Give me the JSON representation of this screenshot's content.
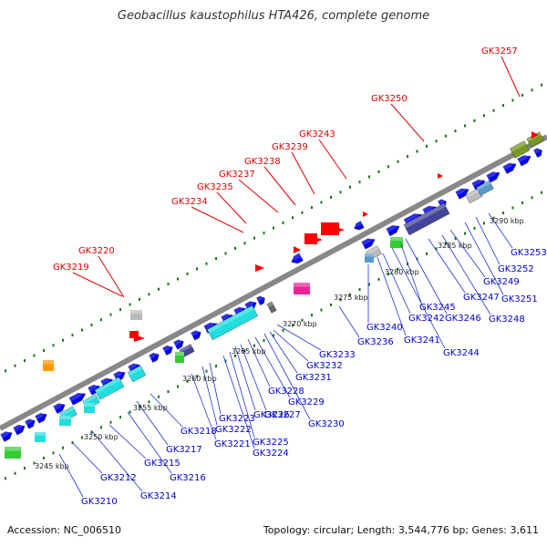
{
  "title": "Geobacillus kaustophilus HTA426, complete genome",
  "footer": {
    "accession": "Accession: NC_006510",
    "stats": "Topology: circular; Length: 3,544,776 bp; Genes: 3,611"
  },
  "colors": {
    "backbone": "#888888",
    "forward_gene": "#0000ee",
    "red_feature": "#ff0000",
    "red_label": "#e00000",
    "blue_label": "#0000cc",
    "cyan": "#22dddd",
    "green": "#33cc33",
    "slate": "#444499",
    "olive": "#779922",
    "steel": "#5599cc",
    "magenta": "#ee2299",
    "orange": "#ff9900",
    "gray": "#bbbbbb",
    "tick": "#117711"
  },
  "scale_labels": [
    "3245 kbp",
    "3250 kbp",
    "3255 kbp",
    "3260 kbp",
    "3265 kbp",
    "3270 kbp",
    "3275 kbp",
    "3280 kbp",
    "3285 kbp",
    "3290 kbp"
  ],
  "top_genes": [
    "GK3219",
    "GK3220",
    "GK3234",
    "GK3235",
    "GK3237",
    "GK3238",
    "GK3239",
    "GK3243",
    "GK3250",
    "GK3257"
  ],
  "bottom_genes": [
    "GK3210",
    "GK3212",
    "GK3214",
    "GK3215",
    "GK3216",
    "GK3217",
    "GK3218",
    "GK3221",
    "GK3222",
    "GK3223",
    "GK3224",
    "GK3225",
    "GK3226",
    "GK3227",
    "GK3228",
    "GK3229",
    "GK3230",
    "GK3231",
    "GK3232",
    "GK3233",
    "GK3236",
    "GK3240",
    "GK3241",
    "GK3242",
    "GK3244",
    "GK3245",
    "GK3246",
    "GK3247",
    "GK3248",
    "GK3249",
    "GK3251",
    "GK3252",
    "GK3253"
  ]
}
